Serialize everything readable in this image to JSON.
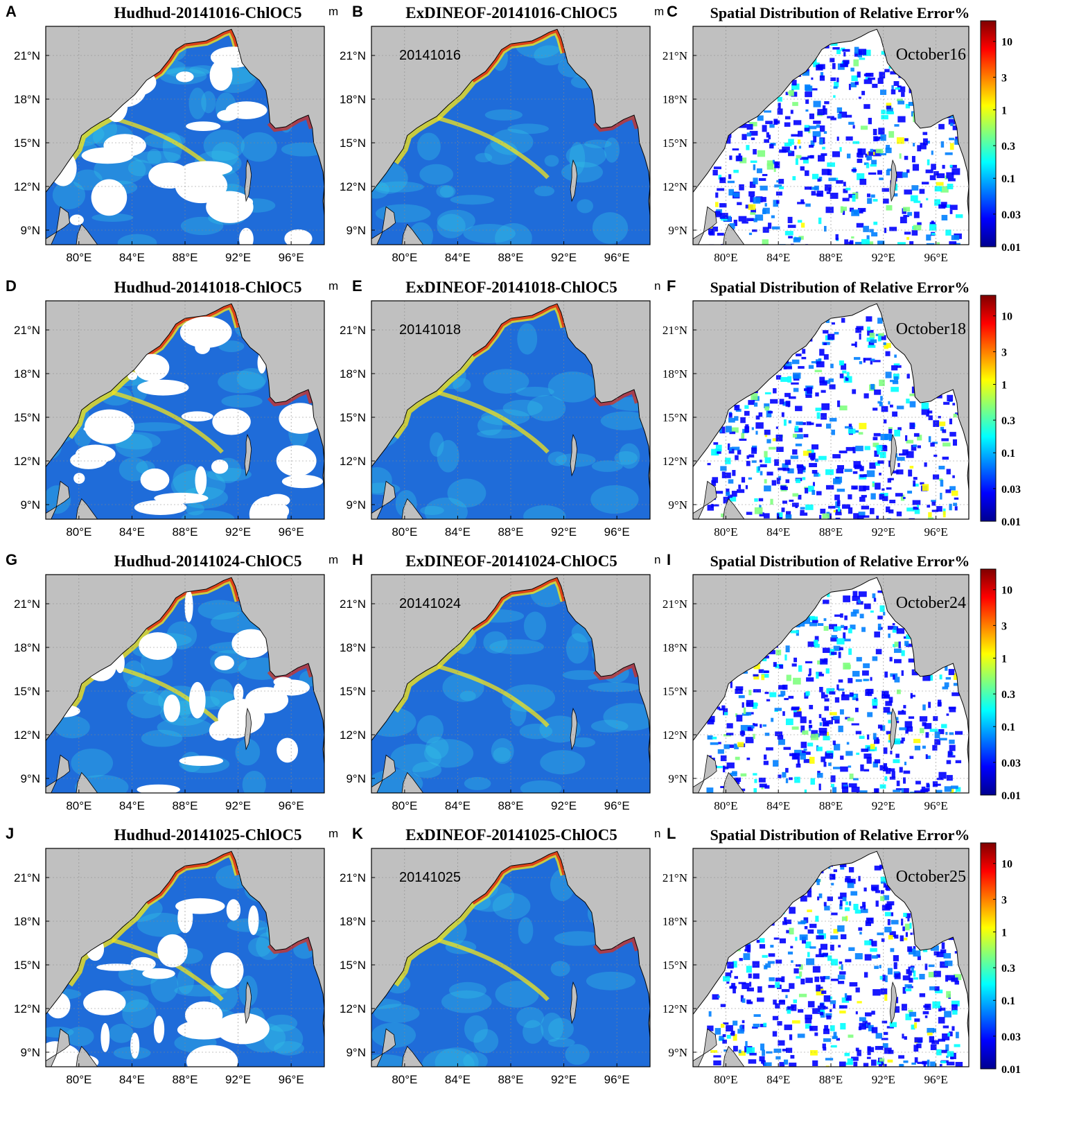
{
  "figure": {
    "rows": [
      {
        "panels": [
          {
            "letter": "A",
            "title": "Hudhud-20141016-ChlOC5",
            "clip": "m",
            "kind": "hudhud",
            "date_label": ""
          },
          {
            "letter": "B",
            "title": "ExDINEOF-20141016-ChlOC5",
            "clip": "m",
            "kind": "exdineof",
            "date_label": "20141016"
          },
          {
            "letter": "C",
            "title": "Spatial Distribution of Relative Error%",
            "clip": "",
            "kind": "error",
            "date_label": "October16"
          }
        ]
      },
      {
        "panels": [
          {
            "letter": "D",
            "title": "Hudhud-20141018-ChlOC5",
            "clip": "m",
            "kind": "hudhud",
            "date_label": ""
          },
          {
            "letter": "E",
            "title": "ExDINEOF-20141018-ChlOC5",
            "clip": "n",
            "kind": "exdineof",
            "date_label": "20141018"
          },
          {
            "letter": "F",
            "title": "Spatial Distribution of Relative Error%",
            "clip": "",
            "kind": "error",
            "date_label": "October18"
          }
        ]
      },
      {
        "panels": [
          {
            "letter": "G",
            "title": "Hudhud-20141024-ChlOC5",
            "clip": "m",
            "kind": "hudhud",
            "date_label": ""
          },
          {
            "letter": "H",
            "title": "ExDINEOF-20141024-ChlOC5",
            "clip": "n",
            "kind": "exdineof",
            "date_label": "20141024"
          },
          {
            "letter": "I",
            "title": "Spatial Distribution of Relative Error%",
            "clip": "",
            "kind": "error",
            "date_label": "October24"
          }
        ]
      },
      {
        "panels": [
          {
            "letter": "J",
            "title": "Hudhud-20141025-ChlOC5",
            "clip": "m",
            "kind": "hudhud",
            "date_label": ""
          },
          {
            "letter": "K",
            "title": "ExDINEOF-20141025-ChlOC5",
            "clip": "n",
            "kind": "exdineof",
            "date_label": "20141025"
          },
          {
            "letter": "L",
            "title": "Spatial Distribution of Relative Error%",
            "clip": "",
            "kind": "error",
            "date_label": "October25"
          }
        ]
      }
    ],
    "lat_ticks": [
      "21°N",
      "18°N",
      "15°N",
      "12°N",
      "9°N"
    ],
    "lon_ticks": [
      "80°E",
      "84°E",
      "88°E",
      "92°E",
      "96°E"
    ],
    "lat_values": [
      21,
      18,
      15,
      12,
      9
    ],
    "lon_values": [
      80,
      84,
      88,
      92,
      96
    ],
    "extent": {
      "lon_min": 77.5,
      "lon_max": 98.5,
      "lat_min": 8,
      "lat_max": 23
    },
    "colorbar_labels": [
      "10",
      "3",
      "1",
      "0.3",
      "0.1",
      "0.03",
      "0.01"
    ],
    "colorbar_values": [
      10,
      3,
      1,
      0.3,
      0.1,
      0.03,
      0.01
    ],
    "colors": {
      "land": "#c0c0c0",
      "missing": "#ffffff",
      "low": "#1f6cd9",
      "mid": "#33c5e8",
      "high_yellow": "#f2e31c",
      "high_red": "#e02b12",
      "colormap": [
        "#00008f",
        "#0000ff",
        "#007fff",
        "#00ffff",
        "#7fff7f",
        "#ffff00",
        "#ff7f00",
        "#ff0000",
        "#7f0000"
      ]
    }
  }
}
